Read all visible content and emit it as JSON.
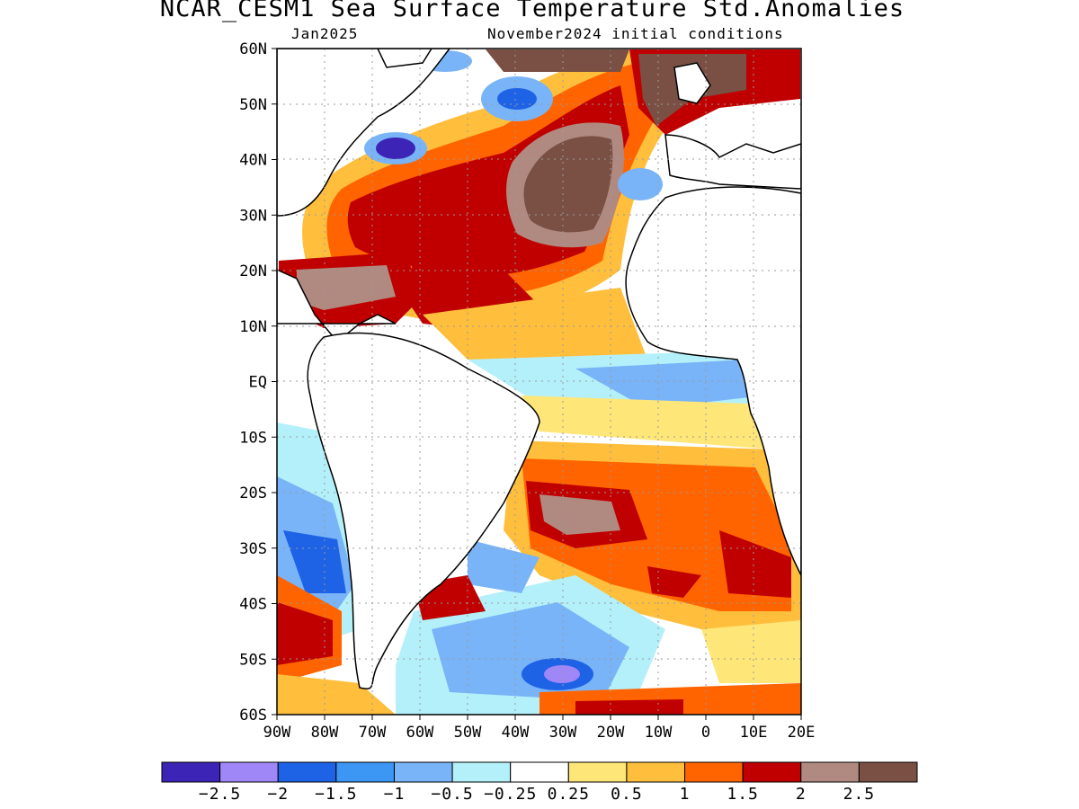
{
  "title": "NCAR_CESM1 Sea Surface Temperature Std.Anomalies",
  "subtitle_left": "Jan2025",
  "subtitle_right": "November2024 initial conditions",
  "axes": {
    "lat_labels": [
      "60N",
      "50N",
      "40N",
      "30N",
      "20N",
      "10N",
      "EQ",
      "10S",
      "20S",
      "30S",
      "40S",
      "50S",
      "60S"
    ],
    "lon_labels": [
      "90W",
      "80W",
      "70W",
      "60W",
      "50W",
      "40W",
      "30W",
      "20W",
      "10W",
      "0",
      "10E",
      "20E"
    ],
    "lat_range": [
      -60,
      60
    ],
    "lon_range": [
      -90,
      20
    ],
    "grid": true
  },
  "colorbar": {
    "colors": [
      "#3c24b7",
      "#9f87f7",
      "#1e62e6",
      "#3c96f4",
      "#78b4f7",
      "#b4f0fa",
      "#ffffff",
      "#ffe678",
      "#ffbe3c",
      "#ff6400",
      "#c00000",
      "#b08a80",
      "#7a5044"
    ],
    "labels": [
      "−2.5",
      "−2",
      "−1.5",
      "−1",
      "−0.5",
      "−0.25",
      "0.25",
      "0.5",
      "1",
      "1.5",
      "2",
      "2.5"
    ]
  },
  "colors": {
    "land": "#ffffff",
    "coast": "#000000",
    "grid": "#9a9a9a"
  }
}
